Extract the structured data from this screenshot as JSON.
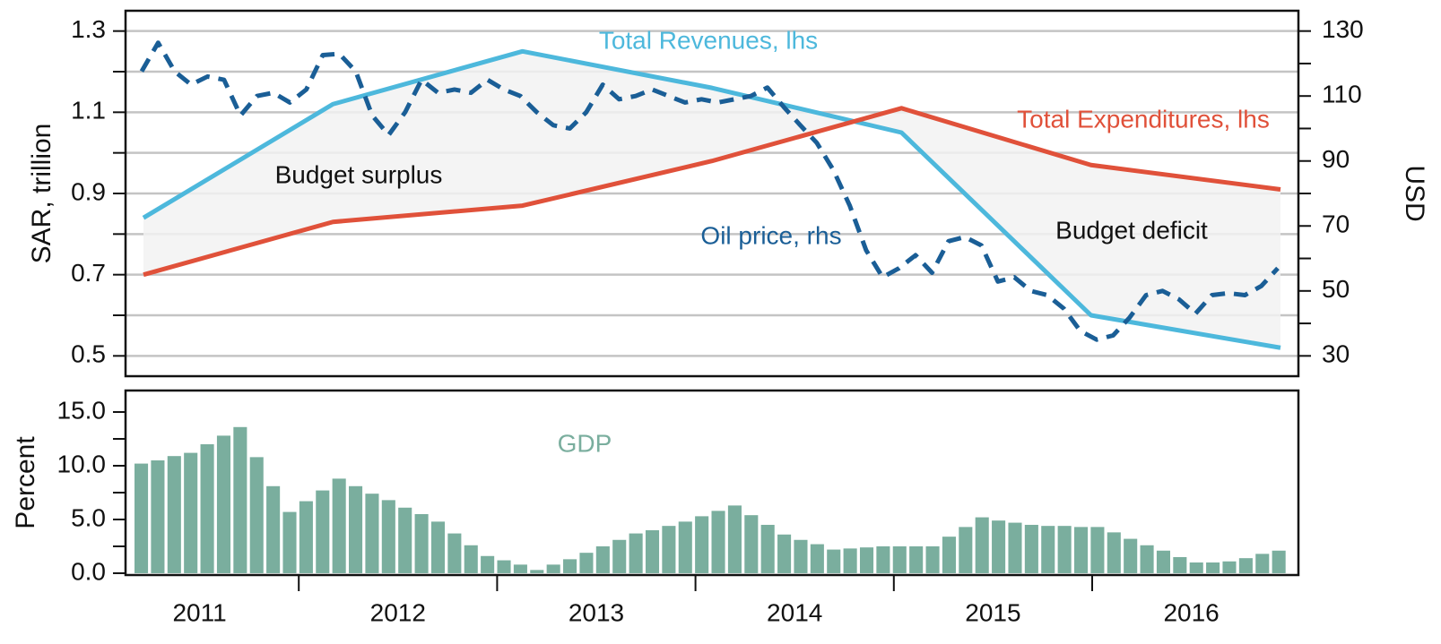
{
  "chart_data": [
    {
      "type": "line",
      "ylabel": "SAR, trillion",
      "y2label": "USD",
      "ylim": [
        0.45,
        1.35
      ],
      "yticks": [
        0.5,
        0.7,
        0.9,
        1.1,
        1.3
      ],
      "minor_yticks": [
        0.6,
        0.8,
        1.0,
        1.2
      ],
      "y2lim": [
        23.75,
        136.25
      ],
      "y2ticks": [
        30,
        50,
        70,
        90,
        110,
        130
      ],
      "minor_y2ticks": [
        40,
        60,
        80,
        100,
        120
      ],
      "grid": true,
      "fill_between_color": "#f2f2f2",
      "series": [
        {
          "name": "Total Revenues, lhs",
          "color": "#4db8dc",
          "values": [
            0.84,
            1.12,
            1.25,
            1.16,
            1.05,
            0.6,
            0.52
          ]
        },
        {
          "name": "Total Expenditures, lhs",
          "color": "#e0513a",
          "values": [
            0.7,
            0.83,
            0.87,
            0.98,
            1.11,
            0.97,
            0.91
          ]
        },
        {
          "name": "Oil price, rhs",
          "color": "#1a5e96",
          "axis": "y2",
          "dashed": true,
          "values": [
            117.6,
            126.4,
            117.6,
            113.5,
            116,
            115,
            104,
            110,
            111,
            108,
            112,
            122.6,
            123,
            117.6,
            104,
            98,
            105,
            115,
            111,
            112,
            111,
            115,
            112,
            110,
            105,
            101,
            100,
            105,
            113.5,
            109,
            110,
            112,
            110,
            108,
            109,
            108,
            109,
            110,
            112.6,
            106.6,
            101,
            95.6,
            87.3,
            76.3,
            62.5,
            54.2,
            57,
            61,
            55.6,
            65.3,
            66.6,
            64,
            52.9,
            54.2,
            50,
            48.7,
            44.6,
            37.7,
            35,
            36.3,
            41.8,
            48.7,
            50,
            47.4,
            43,
            48.7,
            49.3,
            48.7,
            51.5,
            57
          ]
        }
      ],
      "annotations": [
        "Budget surplus",
        "Budget deficit"
      ]
    },
    {
      "type": "bar",
      "ylabel": "Percent",
      "xtick_labels": [
        "2011",
        "2012",
        "2013",
        "2014",
        "2015",
        "2016"
      ],
      "ylim": [
        -0.17,
        17
      ],
      "yticks": [
        {
          "value": 0,
          "label": "0.0"
        },
        {
          "value": 5,
          "label": "5.0"
        },
        {
          "value": 10,
          "label": "10.0"
        },
        {
          "value": 15,
          "label": "15.0"
        }
      ],
      "minor_yticks": [
        2.5,
        7.5,
        12.5
      ],
      "series": [
        {
          "name": "GDP",
          "color": "#7aae9e",
          "values": [
            10.2,
            10.5,
            10.9,
            11.2,
            12.0,
            12.8,
            13.6,
            10.8,
            8.1,
            5.7,
            6.7,
            7.7,
            8.8,
            8.1,
            7.4,
            6.8,
            6.1,
            5.5,
            4.8,
            3.7,
            2.6,
            1.6,
            1.2,
            0.8,
            0.3,
            0.8,
            1.3,
            1.9,
            2.5,
            3.1,
            3.7,
            4.0,
            4.4,
            4.8,
            5.3,
            5.8,
            6.3,
            5.4,
            4.5,
            3.6,
            3.1,
            2.7,
            2.2,
            2.3,
            2.4,
            2.5,
            2.5,
            2.5,
            2.5,
            3.4,
            4.3,
            5.2,
            4.9,
            4.7,
            4.5,
            4.4,
            4.4,
            4.3,
            4.3,
            3.8,
            3.2,
            2.6,
            2.1,
            1.5,
            1.0,
            1.0,
            1.1,
            1.4,
            1.8,
            2.1
          ]
        }
      ]
    }
  ]
}
